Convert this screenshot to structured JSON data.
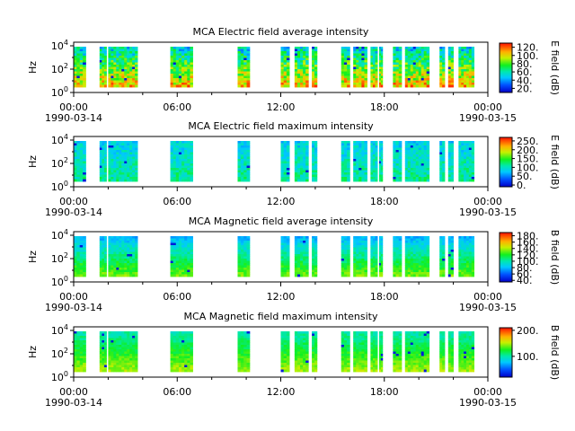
{
  "figure": {
    "ylabel": "Hz",
    "xtick_labels": [
      "00:00",
      "06:00",
      "12:00",
      "18:00",
      "00:00"
    ],
    "start_date": "1990-03-14",
    "end_date": "1990-03-15"
  },
  "chart_data": [
    {
      "type": "heatmap",
      "title": "MCA  Electric field average intensity",
      "ylabel": "Hz",
      "y_scale": "log",
      "y_ticks": [
        "10^0",
        "10^2",
        "10^4"
      ],
      "x_range": [
        "1990-03-14 00:00",
        "1990-03-15 00:00"
      ],
      "colorbar_label": "E field (dB)",
      "colorbar_ticks": [
        "20.",
        "40.",
        "60.",
        "80.",
        "100.",
        "120."
      ],
      "colorbar_range": [
        10,
        130
      ],
      "data_intervals_hours": [
        [
          0.0,
          0.7
        ],
        [
          1.5,
          1.9
        ],
        [
          2.0,
          3.7
        ],
        [
          5.6,
          6.9
        ],
        [
          9.5,
          10.2
        ],
        [
          12.0,
          12.5
        ],
        [
          12.8,
          13.6
        ],
        [
          13.8,
          14.1
        ],
        [
          15.5,
          16.0
        ],
        [
          16.2,
          17.0
        ],
        [
          17.2,
          17.6
        ],
        [
          17.7,
          17.9
        ],
        [
          18.5,
          19.0
        ],
        [
          19.2,
          20.6
        ],
        [
          21.2,
          21.5
        ],
        [
          21.7,
          22.0
        ],
        [
          22.3,
          23.2
        ]
      ]
    },
    {
      "type": "heatmap",
      "title": "MCA  Electric field maximum intensity",
      "ylabel": "Hz",
      "y_scale": "log",
      "y_ticks": [
        "10^0",
        "10^2",
        "10^4"
      ],
      "x_range": [
        "1990-03-14 00:00",
        "1990-03-15 00:00"
      ],
      "colorbar_label": "E field (dB)",
      "colorbar_ticks": [
        "0.",
        "50.",
        "100.",
        "150.",
        "200.",
        "250."
      ],
      "colorbar_range": [
        -10,
        270
      ],
      "data_intervals_hours": [
        [
          0.0,
          0.7
        ],
        [
          1.5,
          1.9
        ],
        [
          2.0,
          3.7
        ],
        [
          5.6,
          6.9
        ],
        [
          9.5,
          10.2
        ],
        [
          12.0,
          12.5
        ],
        [
          12.8,
          13.6
        ],
        [
          13.8,
          14.1
        ],
        [
          15.5,
          16.0
        ],
        [
          16.2,
          17.0
        ],
        [
          17.2,
          17.6
        ],
        [
          17.7,
          17.9
        ],
        [
          18.5,
          19.0
        ],
        [
          19.2,
          20.6
        ],
        [
          21.2,
          21.5
        ],
        [
          21.7,
          22.0
        ],
        [
          22.3,
          23.2
        ]
      ]
    },
    {
      "type": "heatmap",
      "title": "MCA  Magnetic field average intensity",
      "ylabel": "Hz",
      "y_scale": "log",
      "y_ticks": [
        "10^0",
        "10^2",
        "10^4"
      ],
      "x_range": [
        "1990-03-14 00:00",
        "1990-03-15 00:00"
      ],
      "colorbar_label": "B field (dB)",
      "colorbar_ticks": [
        "40.",
        "60.",
        "80.",
        "100.",
        "120.",
        "140.",
        "160.",
        "180."
      ],
      "colorbar_range": [
        35,
        190
      ],
      "data_intervals_hours": [
        [
          0.0,
          0.7
        ],
        [
          1.5,
          1.9
        ],
        [
          2.0,
          3.7
        ],
        [
          5.6,
          6.9
        ],
        [
          9.5,
          10.2
        ],
        [
          12.0,
          12.5
        ],
        [
          12.8,
          13.6
        ],
        [
          13.8,
          14.1
        ],
        [
          15.5,
          16.0
        ],
        [
          16.2,
          17.0
        ],
        [
          17.2,
          17.6
        ],
        [
          17.7,
          17.9
        ],
        [
          18.5,
          19.0
        ],
        [
          19.2,
          20.6
        ],
        [
          21.2,
          21.5
        ],
        [
          21.7,
          22.0
        ],
        [
          22.3,
          23.2
        ]
      ]
    },
    {
      "type": "heatmap",
      "title": "MCA  Magnetic field maximum intensity",
      "ylabel": "Hz",
      "y_scale": "log",
      "y_ticks": [
        "10^0",
        "10^2",
        "10^4"
      ],
      "x_range": [
        "1990-03-14 00:00",
        "1990-03-15 00:00"
      ],
      "colorbar_label": "B field (dB)",
      "colorbar_ticks": [
        "100.",
        "200."
      ],
      "colorbar_range": [
        20,
        210
      ],
      "data_intervals_hours": [
        [
          0.0,
          0.7
        ],
        [
          1.5,
          1.9
        ],
        [
          2.0,
          3.7
        ],
        [
          5.6,
          6.9
        ],
        [
          9.5,
          10.2
        ],
        [
          12.0,
          12.5
        ],
        [
          12.8,
          13.6
        ],
        [
          13.8,
          14.1
        ],
        [
          15.5,
          16.0
        ],
        [
          16.2,
          17.0
        ],
        [
          17.2,
          17.6
        ],
        [
          17.7,
          17.9
        ],
        [
          18.5,
          19.0
        ],
        [
          19.2,
          20.6
        ],
        [
          21.2,
          21.5
        ],
        [
          21.7,
          22.0
        ],
        [
          22.3,
          23.2
        ]
      ]
    }
  ]
}
